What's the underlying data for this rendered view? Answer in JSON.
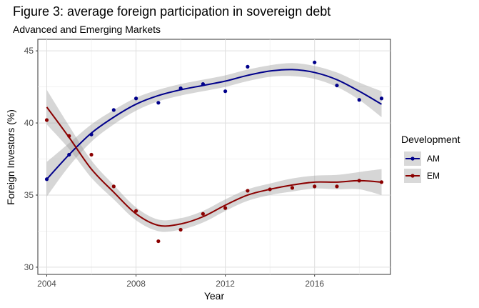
{
  "chart_data": {
    "type": "scatter",
    "title": "Figure 3: average foreign participation in sovereign debt",
    "subtitle": "Advanced and Emerging Markets",
    "xlabel": "Year",
    "ylabel": "Foreign Investors (%)",
    "xlim": [
      2003.6,
      2019.4
    ],
    "ylim": [
      29.5,
      45.8
    ],
    "x_ticks": [
      2004,
      2008,
      2012,
      2016
    ],
    "y_ticks": [
      30,
      35,
      40,
      45
    ],
    "grid": true,
    "legend": {
      "title": "Development",
      "position": "right"
    },
    "series": [
      {
        "name": "AM",
        "color": "#00008B",
        "x": [
          2004,
          2005,
          2006,
          2007,
          2008,
          2009,
          2010,
          2011,
          2012,
          2013,
          2014,
          2015,
          2016,
          2017,
          2018,
          2019
        ],
        "points": [
          36.1,
          37.8,
          39.2,
          40.9,
          41.7,
          41.4,
          42.4,
          42.7,
          42.2,
          43.9,
          null,
          null,
          44.2,
          42.6,
          41.6,
          41.7
        ],
        "smooth": [
          36.1,
          37.8,
          39.3,
          40.4,
          41.3,
          41.9,
          42.3,
          42.6,
          42.9,
          43.3,
          43.6,
          43.7,
          43.5,
          43.0,
          42.2,
          41.3
        ],
        "band_halfwidth": [
          1.2,
          0.8,
          0.6,
          0.5,
          0.45,
          0.4,
          0.4,
          0.4,
          0.4,
          0.4,
          0.4,
          0.45,
          0.45,
          0.5,
          0.6,
          0.9
        ]
      },
      {
        "name": "EM",
        "color": "#8B0000",
        "x": [
          2004,
          2005,
          2006,
          2007,
          2008,
          2009,
          2010,
          2011,
          2012,
          2013,
          2014,
          2015,
          2016,
          2017,
          2018,
          2019
        ],
        "points": [
          40.2,
          39.1,
          37.8,
          35.6,
          33.9,
          31.8,
          32.6,
          33.7,
          34.1,
          35.3,
          35.4,
          35.5,
          35.6,
          35.6,
          36.0,
          35.9
        ],
        "smooth": [
          41.1,
          39.0,
          36.8,
          35.2,
          33.7,
          32.9,
          33.0,
          33.5,
          34.3,
          35.0,
          35.4,
          35.7,
          35.9,
          35.9,
          36.0,
          35.9
        ],
        "band_halfwidth": [
          1.2,
          0.8,
          0.6,
          0.5,
          0.45,
          0.4,
          0.4,
          0.4,
          0.4,
          0.4,
          0.4,
          0.45,
          0.45,
          0.5,
          0.6,
          0.9
        ]
      }
    ]
  }
}
